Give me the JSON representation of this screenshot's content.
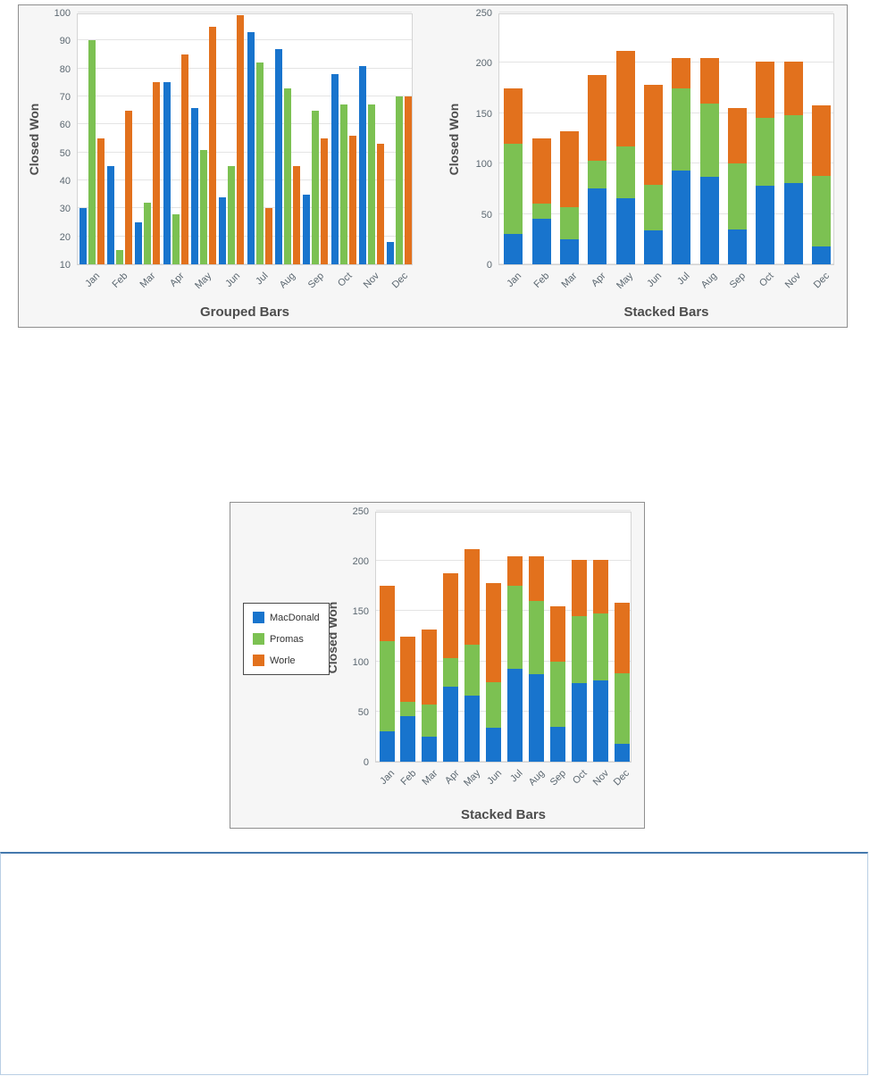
{
  "colors": {
    "macdonald_blue": "#1874cd",
    "promas_green": "#7cc152",
    "worle_orange": "#e2711d",
    "panel_background": "#f6f6f6"
  },
  "chart_data": [
    {
      "type": "bar",
      "title": "Grouped Bars",
      "xlabel": "",
      "ylabel": "Closed Won",
      "ylim": [
        10,
        100
      ],
      "yticks": [
        10,
        20,
        30,
        40,
        50,
        60,
        70,
        80,
        90,
        100
      ],
      "grid": true,
      "legend": false,
      "categories": [
        "Jan",
        "Feb",
        "Mar",
        "Apr",
        "May",
        "Jun",
        "Jul",
        "Aug",
        "Sep",
        "Oct",
        "Nov",
        "Dec"
      ],
      "series": [
        {
          "name": "MacDonald",
          "color": "#1874cd",
          "values": [
            30,
            45,
            25,
            75,
            66,
            34,
            93,
            87,
            35,
            78,
            81,
            18
          ]
        },
        {
          "name": "Promas",
          "color": "#7cc152",
          "values": [
            90,
            15,
            32,
            28,
            51,
            45,
            82,
            73,
            65,
            67,
            67,
            70
          ]
        },
        {
          "name": "Worle",
          "color": "#e2711d",
          "values": [
            55,
            65,
            75,
            85,
            95,
            99,
            30,
            45,
            55,
            56,
            53,
            70
          ]
        }
      ]
    },
    {
      "type": "stacked-bar",
      "title": "Stacked Bars",
      "xlabel": "",
      "ylabel": "Closed Won",
      "ylim": [
        0,
        250
      ],
      "yticks": [
        0,
        50,
        100,
        150,
        200,
        250
      ],
      "grid": true,
      "legend": false,
      "categories": [
        "Jan",
        "Feb",
        "Mar",
        "Apr",
        "May",
        "Jun",
        "Jul",
        "Aug",
        "Sep",
        "Oct",
        "Nov",
        "Dec"
      ],
      "series": [
        {
          "name": "MacDonald",
          "color": "#1874cd",
          "values": [
            30,
            45,
            25,
            75,
            66,
            34,
            93,
            87,
            35,
            78,
            81,
            18
          ]
        },
        {
          "name": "Promas",
          "color": "#7cc152",
          "values": [
            90,
            15,
            32,
            28,
            51,
            45,
            82,
            73,
            65,
            67,
            67,
            70
          ]
        },
        {
          "name": "Worle",
          "color": "#e2711d",
          "values": [
            55,
            65,
            75,
            85,
            95,
            99,
            30,
            45,
            55,
            56,
            53,
            70
          ]
        }
      ]
    },
    {
      "type": "stacked-bar",
      "title": "Stacked Bars",
      "xlabel": "",
      "ylabel": "Closed Won",
      "ylim": [
        0,
        250
      ],
      "yticks": [
        0,
        50,
        100,
        150,
        200,
        250
      ],
      "grid": true,
      "legend": true,
      "legend_position": "left",
      "categories": [
        "Jan",
        "Feb",
        "Mar",
        "Apr",
        "May",
        "Jun",
        "Jul",
        "Aug",
        "Sep",
        "Oct",
        "Nov",
        "Dec"
      ],
      "series": [
        {
          "name": "MacDonald",
          "color": "#1874cd",
          "values": [
            30,
            45,
            25,
            75,
            66,
            34,
            93,
            87,
            35,
            78,
            81,
            18
          ]
        },
        {
          "name": "Promas",
          "color": "#7cc152",
          "values": [
            90,
            15,
            32,
            28,
            51,
            45,
            82,
            73,
            65,
            67,
            67,
            70
          ]
        },
        {
          "name": "Worle",
          "color": "#e2711d",
          "values": [
            55,
            65,
            75,
            85,
            95,
            99,
            30,
            45,
            55,
            56,
            53,
            70
          ]
        }
      ]
    }
  ]
}
